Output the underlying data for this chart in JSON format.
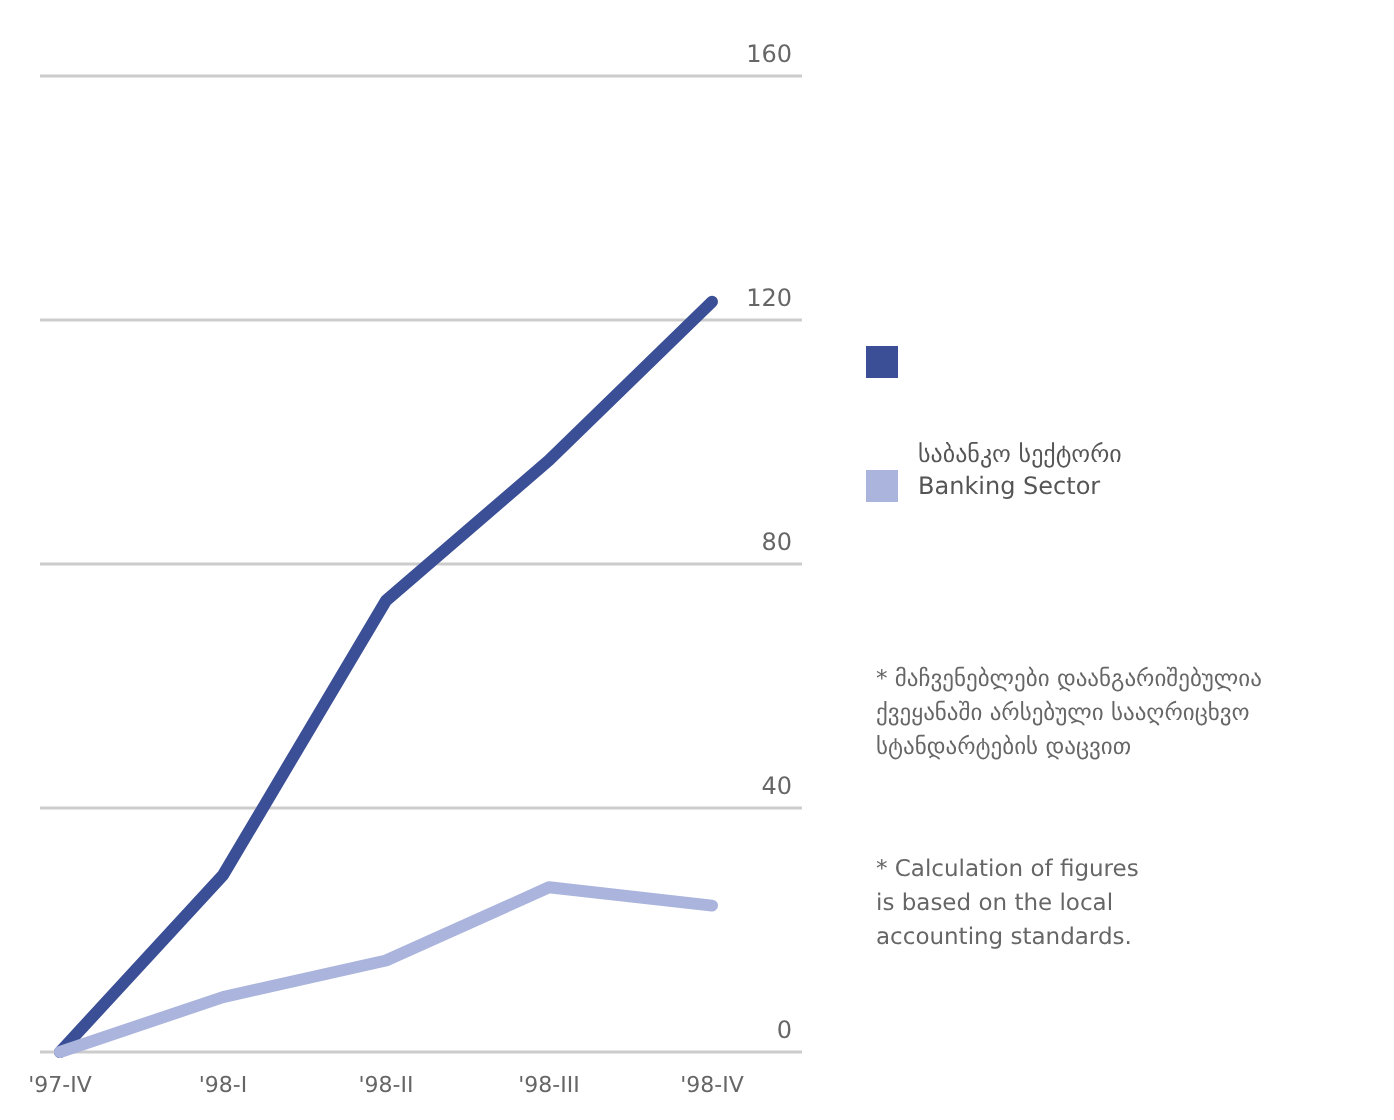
{
  "chart_data": {
    "type": "line",
    "categories": [
      "'97-IV",
      "'98-I",
      "'98-II",
      "'98-III",
      "'98-IV"
    ],
    "series": [
      {
        "color": "#3b4f96",
        "values": [
          0,
          29,
          74,
          97,
          123
        ]
      },
      {
        "name": "საბანკო სექტორი\nBanking Sector",
        "color": "#aab4dc",
        "values": [
          0,
          9,
          15,
          27,
          24
        ]
      }
    ],
    "ylim": [
      0,
      160
    ],
    "yticks": [
      0,
      40,
      80,
      120,
      160
    ],
    "grid": "y",
    "legend": "right",
    "line_style": "solid",
    "marker": "none",
    "annotations": [
      "* მაჩვენებლები დაანგარიშებულია ქვეყანაში არსებული სააღრიცხვო სტანდარტების დაცვით",
      "* Calculation of figures is based on the local accounting standards."
    ]
  }
}
